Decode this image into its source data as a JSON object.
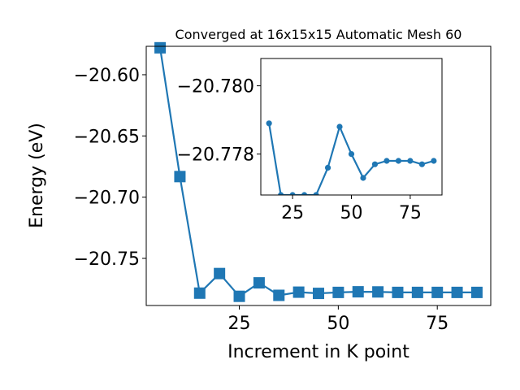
{
  "chart_data": [
    {
      "type": "line",
      "title": "Converged at 16x15x15 Automatic Mesh 60",
      "xlabel": "Increment in K point",
      "ylabel": "Energy (eV)",
      "xlim": [
        1.5,
        88.5
      ],
      "ylim": [
        -20.7885,
        -20.5768
      ],
      "grid": false,
      "marker": "square",
      "color": "#1f77b4",
      "xticks": [
        25,
        50,
        75
      ],
      "xtick_labels": [
        "25",
        "50",
        "75"
      ],
      "yticks": [
        -20.75,
        -20.7,
        -20.65,
        -20.6
      ],
      "ytick_labels": [
        "−20.75",
        "−20.70",
        "−20.65",
        "−20.60"
      ],
      "series": [
        {
          "x": [
            5,
            10,
            15,
            20,
            25,
            30,
            35,
            40,
            45,
            50,
            55,
            60,
            65,
            70,
            75,
            80,
            85
          ],
          "y": [
            -20.578,
            -20.6832,
            -20.7784,
            -20.7624,
            -20.781,
            -20.77,
            -20.7802,
            -20.7776,
            -20.7786,
            -20.7778,
            -20.7773,
            -20.7774,
            -20.7778,
            -20.7778,
            -20.7778,
            -20.7778,
            -20.7778
          ]
        }
      ]
    },
    {
      "type": "line",
      "inset": true,
      "xlim": [
        11.5,
        88.5
      ],
      "ylim": [
        -20.7768,
        -20.7808
      ],
      "grid": false,
      "marker": "circle",
      "color": "#1f77b4",
      "xticks": [
        25,
        50,
        75
      ],
      "xtick_labels": [
        "25",
        "50",
        "75"
      ],
      "yticks": [
        -20.778,
        -20.78
      ],
      "ytick_labels": [
        "−20.778",
        "−20.780"
      ],
      "series": [
        {
          "x": [
            15,
            20,
            25,
            30,
            35,
            40,
            45,
            50,
            55,
            60,
            65,
            70,
            75,
            80,
            85
          ],
          "y": [
            -20.7789,
            -20.7768,
            -20.7768,
            -20.7768,
            -20.7768,
            -20.7776,
            -20.7788,
            -20.778,
            -20.7773,
            -20.7777,
            -20.7778,
            -20.7778,
            -20.7778,
            -20.7777,
            -20.7778
          ]
        }
      ]
    }
  ]
}
